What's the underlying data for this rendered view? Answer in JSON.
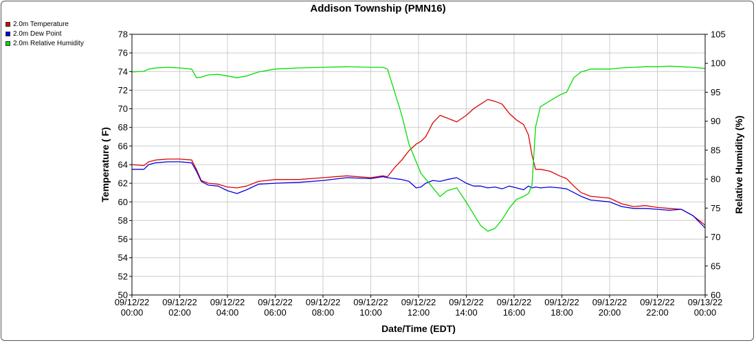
{
  "chart_data": {
    "type": "line",
    "title": "Addison Township (PMN16)",
    "xlabel": "Date/Time (EDT)",
    "ylabel": "Temperature ( F)",
    "y2label": "Relative Humidity (%)",
    "ylim": [
      50,
      78
    ],
    "y2lim": [
      60,
      105
    ],
    "yticks": [
      50,
      52,
      54,
      56,
      58,
      60,
      62,
      64,
      66,
      68,
      70,
      72,
      74,
      76,
      78
    ],
    "y2ticks": [
      60,
      65,
      70,
      75,
      80,
      85,
      90,
      95,
      100,
      105
    ],
    "xlim": [
      0,
      24
    ],
    "xticks": [
      {
        "h": 0,
        "date": "09/12/22",
        "time": "00:00"
      },
      {
        "h": 2,
        "date": "09/12/22",
        "time": "02:00"
      },
      {
        "h": 4,
        "date": "09/12/22",
        "time": "04:00"
      },
      {
        "h": 6,
        "date": "09/12/22",
        "time": "06:00"
      },
      {
        "h": 8,
        "date": "09/12/22",
        "time": "08:00"
      },
      {
        "h": 10,
        "date": "09/12/22",
        "time": "10:00"
      },
      {
        "h": 12,
        "date": "09/12/22",
        "time": "12:00"
      },
      {
        "h": 14,
        "date": "09/12/22",
        "time": "14:00"
      },
      {
        "h": 16,
        "date": "09/12/22",
        "time": "16:00"
      },
      {
        "h": 18,
        "date": "09/12/22",
        "time": "18:00"
      },
      {
        "h": 20,
        "date": "09/12/22",
        "time": "20:00"
      },
      {
        "h": 22,
        "date": "09/12/22",
        "time": "22:00"
      },
      {
        "h": 24,
        "date": "09/13/22",
        "time": "00:00"
      }
    ],
    "grid": true,
    "legend_position": "top-left",
    "series": [
      {
        "name": "2.0m Temperature",
        "color": "#dd0000",
        "axis": "left",
        "x": [
          0,
          0.5,
          0.7,
          1,
          1.5,
          2,
          2.5,
          2.7,
          2.9,
          3.2,
          3.6,
          4,
          4.4,
          4.8,
          5.3,
          6,
          7,
          8,
          9,
          10,
          10.5,
          10.7,
          11,
          11.3,
          11.6,
          11.9,
          12.1,
          12.3,
          12.6,
          12.9,
          13.2,
          13.6,
          14,
          14.3,
          14.6,
          14.9,
          15.2,
          15.5,
          15.8,
          16.1,
          16.4,
          16.6,
          16.75,
          16.9,
          17.1,
          17.5,
          17.9,
          18.2,
          18.5,
          18.8,
          19.2,
          19.6,
          20,
          20.5,
          21,
          21.5,
          22,
          22.5,
          23,
          23.5,
          24
        ],
        "y": [
          64,
          63.9,
          64.3,
          64.5,
          64.6,
          64.6,
          64.5,
          63.5,
          62.3,
          62,
          61.9,
          61.6,
          61.5,
          61.7,
          62.2,
          62.4,
          62.4,
          62.6,
          62.8,
          62.6,
          62.8,
          62.7,
          63.7,
          64.5,
          65.5,
          66.2,
          66.5,
          67,
          68.5,
          69.3,
          69,
          68.6,
          69.3,
          70,
          70.5,
          71,
          70.8,
          70.5,
          69.5,
          68.8,
          68.3,
          67.2,
          65,
          63.5,
          63.5,
          63.3,
          62.8,
          62.5,
          61.7,
          61,
          60.6,
          60.5,
          60.4,
          59.8,
          59.5,
          59.6,
          59.4,
          59.3,
          59.2,
          58.5,
          57.5
        ]
      },
      {
        "name": "2.0m Dew Point",
        "color": "#0000dd",
        "axis": "left",
        "x": [
          0,
          0.5,
          0.7,
          1,
          1.5,
          2,
          2.5,
          2.7,
          2.9,
          3.2,
          3.6,
          4,
          4.4,
          4.8,
          5.3,
          6,
          7,
          8,
          9,
          10,
          10.5,
          10.7,
          11,
          11.3,
          11.6,
          11.9,
          12.1,
          12.3,
          12.6,
          12.9,
          13.2,
          13.6,
          14,
          14.3,
          14.6,
          14.9,
          15.2,
          15.5,
          15.8,
          16.1,
          16.4,
          16.6,
          16.75,
          16.9,
          17.1,
          17.5,
          17.9,
          18.2,
          18.5,
          18.8,
          19.2,
          19.6,
          20,
          20.5,
          21,
          21.5,
          22,
          22.5,
          23,
          23.5,
          24
        ],
        "y": [
          63.5,
          63.5,
          64,
          64.2,
          64.3,
          64.3,
          64.2,
          63.3,
          62.2,
          61.8,
          61.7,
          61.2,
          60.9,
          61.3,
          61.9,
          62,
          62.1,
          62.3,
          62.6,
          62.5,
          62.7,
          62.6,
          62.5,
          62.4,
          62.2,
          61.5,
          61.6,
          62,
          62.3,
          62.2,
          62.4,
          62.6,
          62,
          61.7,
          61.7,
          61.5,
          61.6,
          61.4,
          61.7,
          61.5,
          61.3,
          61.7,
          61.5,
          61.6,
          61.5,
          61.6,
          61.5,
          61.4,
          61,
          60.6,
          60.2,
          60.1,
          60,
          59.5,
          59.3,
          59.3,
          59.2,
          59.1,
          59.2,
          58.5,
          57.2
        ]
      },
      {
        "name": "2.0m Relative Humidity",
        "color": "#00dd00",
        "axis": "right",
        "x": [
          0,
          0.5,
          0.7,
          1,
          1.5,
          2,
          2.5,
          2.7,
          2.9,
          3.2,
          3.6,
          4,
          4.4,
          4.8,
          5.3,
          6,
          7,
          8,
          9,
          10,
          10.5,
          10.7,
          11,
          11.3,
          11.6,
          11.9,
          12.1,
          12.3,
          12.6,
          12.9,
          13.2,
          13.6,
          14,
          14.3,
          14.6,
          14.9,
          15.2,
          15.5,
          15.8,
          16.1,
          16.4,
          16.6,
          16.75,
          16.9,
          17.1,
          17.5,
          17.9,
          18.2,
          18.5,
          18.8,
          19.2,
          19.6,
          20,
          20.5,
          21,
          21.5,
          22,
          22.5,
          23,
          23.5,
          24
        ],
        "y": [
          98.5,
          98.6,
          99,
          99.2,
          99.3,
          99.2,
          99,
          97.5,
          97.6,
          98,
          98.1,
          97.8,
          97.5,
          97.8,
          98.5,
          99,
          99.2,
          99.3,
          99.4,
          99.3,
          99.3,
          99,
          95,
          91,
          86,
          83,
          81,
          80,
          78.5,
          77,
          78,
          78.5,
          76,
          74,
          72,
          71,
          71.5,
          73,
          75,
          76.5,
          77,
          77.5,
          79,
          89,
          92.5,
          93.5,
          94.5,
          95,
          97.5,
          98.5,
          99,
          99,
          99,
          99.2,
          99.3,
          99.4,
          99.4,
          99.5,
          99.4,
          99.3,
          99.1
        ]
      }
    ]
  }
}
